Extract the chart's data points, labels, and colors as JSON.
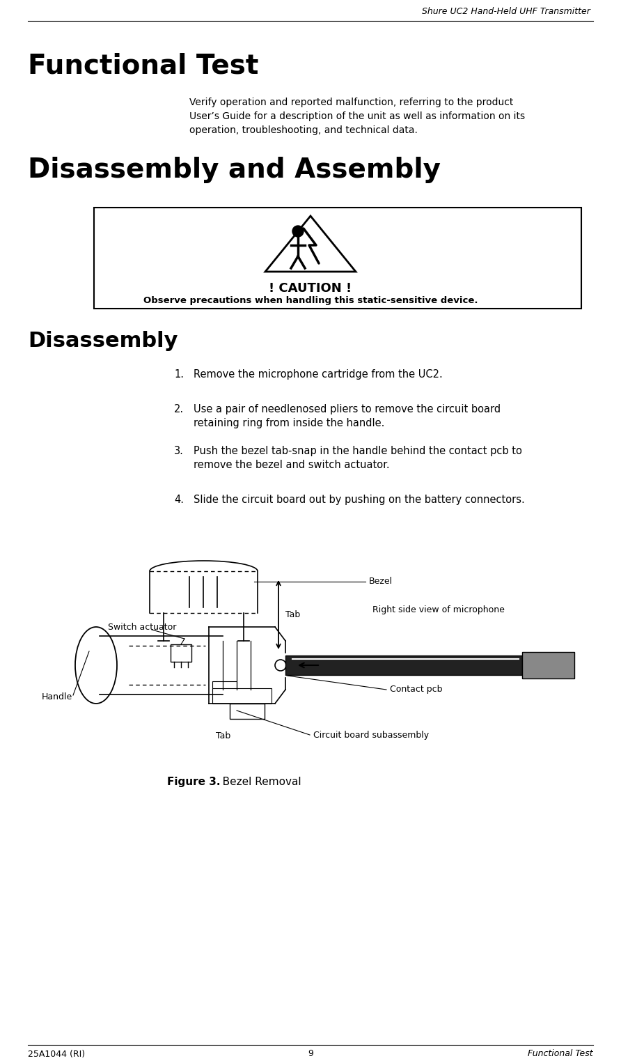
{
  "header_right": "Shure UC2 Hand-Held UHF Transmitter",
  "section1_title": "Functional Test",
  "section1_body_line1": "Verify operation and reported malfunction, referring to the product",
  "section1_body_line2": "User’s Guide for a description of the unit as well as information on its",
  "section1_body_line3": "operation, troubleshooting, and technical data.",
  "section2_title": "Disassembly and Assembly",
  "caution_title": "! CAUTION !",
  "caution_body": "Observe precautions when handling this static-sensitive device.",
  "section3_title": "Disassembly",
  "step1": "Remove the microphone cartridge from the UC2.",
  "step2a": "Use a pair of needlenosed pliers to remove the circuit board",
  "step2b": "retaining ring from inside the handle.",
  "step3a": "Push the bezel tab-snap in the handle behind the contact pcb to",
  "step3b": "remove the bezel and switch actuator.",
  "step4": "Slide the circuit board out by pushing on the battery connectors.",
  "label_bezel": "Bezel",
  "label_right_side": "Right side view of microphone",
  "label_handle": "Handle",
  "label_switch": "Switch actuator",
  "label_tab1": "Tab",
  "label_tab2": "Tab",
  "label_contact": "Contact pcb",
  "label_circuit": "Circuit board subassembly",
  "fig_caption_bold": "Figure 3.",
  "fig_caption_normal": "   Bezel Removal",
  "footer_left": "25A1044 (RI)",
  "footer_center": "9",
  "footer_right": "Functional Test",
  "bg_color": "#ffffff",
  "text_color": "#000000"
}
